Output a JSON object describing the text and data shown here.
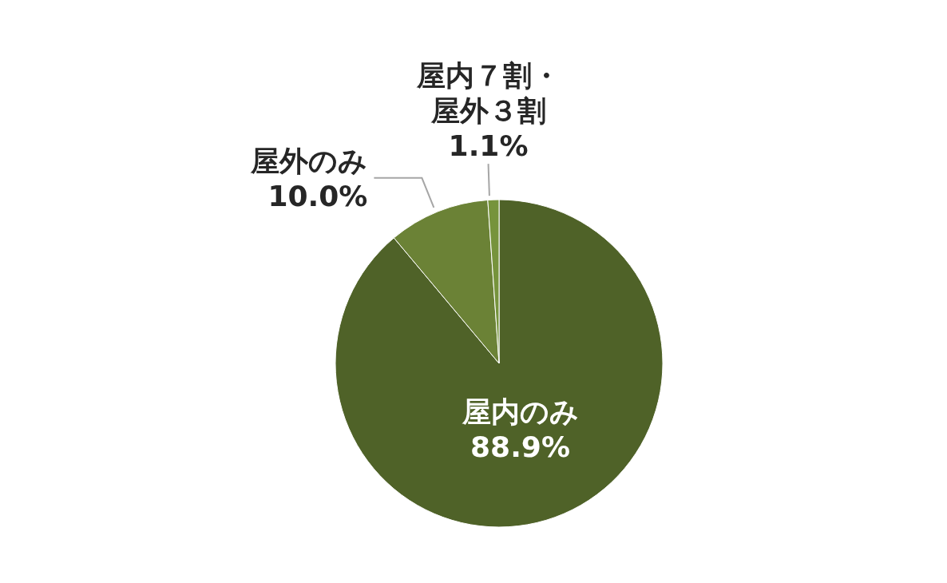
{
  "chart_data": {
    "type": "pie",
    "categories": [
      "屋内のみ",
      "屋外のみ",
      "屋内７割・屋外３割"
    ],
    "values": [
      88.9,
      10.0,
      1.1
    ],
    "value_labels": [
      "88.9%",
      "10.0%",
      "1.1%"
    ],
    "colors": [
      "#4f6228",
      "#6b8236",
      "#76933c"
    ]
  }
}
